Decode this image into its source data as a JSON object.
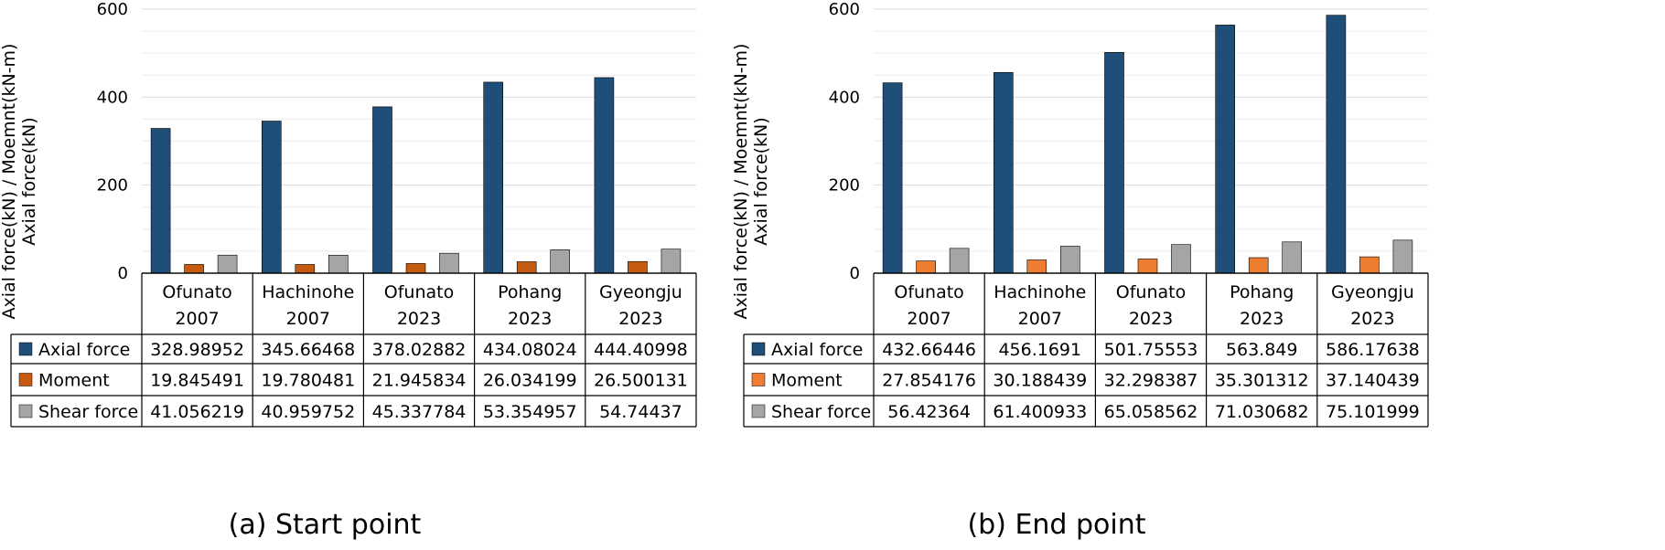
{
  "chart_data": [
    {
      "type": "bar",
      "caption": "(a) Start point",
      "ylabel_lines": [
        "Axial force(kN) / Moemnt(kN-m)",
        "Axial force(kN)"
      ],
      "ylim": [
        0,
        600
      ],
      "yticks": [
        0,
        200,
        400,
        600
      ],
      "grid": true,
      "categories": [
        [
          "Ofunato",
          "2007"
        ],
        [
          "Hachinohe",
          "2007"
        ],
        [
          "Ofunato",
          "2023"
        ],
        [
          "Pohang",
          "2023"
        ],
        [
          "Gyeongju",
          "2023"
        ]
      ],
      "series": [
        {
          "name": "Axial force",
          "color": "#1F4E79",
          "values": [
            328.98952,
            345.66468,
            378.02882,
            434.08024,
            444.40998
          ],
          "labels": [
            "328.98952",
            "345.66468",
            "378.02882",
            "434.08024",
            "444.40998"
          ]
        },
        {
          "name": "Moment",
          "color": "#C55A11",
          "values": [
            19.845491,
            19.780481,
            21.945834,
            26.034199,
            26.500131
          ],
          "labels": [
            "19.845491",
            "19.780481",
            "21.945834",
            "26.034199",
            "26.500131"
          ]
        },
        {
          "name": "Shear force",
          "color": "#A5A5A5",
          "values": [
            41.056219,
            40.959752,
            45.337784,
            53.354957,
            54.74437
          ],
          "labels": [
            "41.056219",
            "40.959752",
            "45.337784",
            "53.354957",
            "54.74437"
          ]
        }
      ]
    },
    {
      "type": "bar",
      "caption": "(b) End point",
      "ylabel_lines": [
        "Axial force(kN) / Moemnt(kN-m)",
        "Axial force(kN)"
      ],
      "ylim": [
        0,
        600
      ],
      "yticks": [
        0,
        200,
        400,
        600
      ],
      "grid": true,
      "categories": [
        [
          "Ofunato",
          "2007"
        ],
        [
          "Hachinohe",
          "2007"
        ],
        [
          "Ofunato",
          "2023"
        ],
        [
          "Pohang",
          "2023"
        ],
        [
          "Gyeongju",
          "2023"
        ]
      ],
      "series": [
        {
          "name": "Axial force",
          "color": "#1F4E79",
          "values": [
            432.66446,
            456.1691,
            501.75553,
            563.849,
            586.17638
          ],
          "labels": [
            "432.66446",
            "456.1691",
            "501.75553",
            "563.849",
            "586.17638"
          ]
        },
        {
          "name": "Moment",
          "color": "#ED7D31",
          "values": [
            27.854176,
            30.188439,
            32.298387,
            35.301312,
            37.140439
          ],
          "labels": [
            "27.854176",
            "30.188439",
            "32.298387",
            "35.301312",
            "37.140439"
          ]
        },
        {
          "name": "Shear force",
          "color": "#A5A5A5",
          "values": [
            56.42364,
            61.400933,
            65.058562,
            71.030682,
            75.101999
          ],
          "labels": [
            "56.42364",
            "61.400933",
            "65.058562",
            "71.030682",
            "75.101999"
          ]
        }
      ]
    }
  ]
}
